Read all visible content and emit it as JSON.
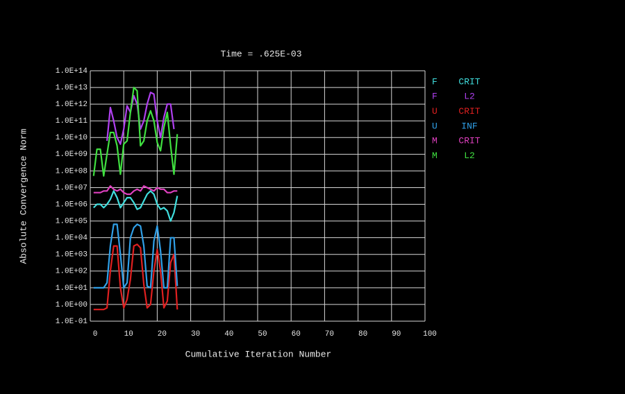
{
  "chart_data": {
    "type": "line",
    "title": "Time = .625E-03",
    "x_label": "Cumulative Iteration Number",
    "y_label": "Absolute Convergence Norm",
    "log_y": true,
    "grid": true,
    "xlim": [
      0,
      100
    ],
    "xticks": [
      0,
      10,
      20,
      30,
      40,
      50,
      60,
      70,
      80,
      90,
      100
    ],
    "ylim": [
      0.1,
      100000000000000.0
    ],
    "yticks": [
      {
        "value": 0.1,
        "label": "1.0E-01"
      },
      {
        "value": 1,
        "label": "1.0E+00"
      },
      {
        "value": 10,
        "label": "1.0E+01"
      },
      {
        "value": 100,
        "label": "1.0E+02"
      },
      {
        "value": 1000,
        "label": "1.0E+03"
      },
      {
        "value": 10000,
        "label": "1.0E+04"
      },
      {
        "value": 100000,
        "label": "1.0E+05"
      },
      {
        "value": 1000000,
        "label": "1.0E+06"
      },
      {
        "value": 10000000,
        "label": "1.0E+07"
      },
      {
        "value": 100000000,
        "label": "1.0E+08"
      },
      {
        "value": 1000000000,
        "label": "1.0E+09"
      },
      {
        "value": 10000000000,
        "label": "1.0E+10"
      },
      {
        "value": 100000000000,
        "label": "1.0E+11"
      },
      {
        "value": 1000000000000,
        "label": "1.0E+12"
      },
      {
        "value": 10000000000000,
        "label": "1.0E+13"
      },
      {
        "value": 100000000000000,
        "label": "1.0E+14"
      }
    ],
    "x": [
      1,
      2,
      3,
      4,
      5,
      6,
      7,
      8,
      9,
      10,
      11,
      12,
      13,
      14,
      15,
      16,
      17,
      18,
      19,
      20,
      21,
      22,
      23,
      24,
      25,
      26
    ],
    "series": [
      {
        "name": "F",
        "criterion": "CRIT",
        "color": "#40dede",
        "values": [
          630000.0,
          1000000.0,
          1000000.0,
          630000.0,
          1000000.0,
          2000000.0,
          6300000.0,
          2500000.0,
          630000.0,
          1260000.0,
          2500000.0,
          2500000.0,
          1260000.0,
          500000.0,
          630000.0,
          1600000.0,
          4000000.0,
          6300000.0,
          4000000.0,
          1000000.0,
          500000.0,
          630000.0,
          400000.0,
          100000.0,
          320000.0,
          3200000.0
        ]
      },
      {
        "name": "F",
        "criterion": "L2",
        "color": "#b040f0",
        "values": [
          null,
          null,
          null,
          null,
          6300000000.0,
          630000000000.0,
          100000000000.0,
          10000000000.0,
          4000000000.0,
          32000000000.0,
          800000000000.0,
          320000000000.0,
          3200000000000.0,
          1000000000000.0,
          32000000000.0,
          100000000000.0,
          1000000000000.0,
          5000000000000.0,
          4000000000000.0,
          100000000000.0,
          10000000000.0,
          160000000000.0,
          1000000000000.0,
          1000000000000.0,
          32000000000.0,
          null
        ]
      },
      {
        "name": "U",
        "criterion": "CRIT",
        "color": "#e02020",
        "values": [
          0.5,
          0.5,
          0.5,
          0.5,
          0.63,
          100,
          3200,
          3200,
          10,
          0.63,
          2,
          32,
          3200,
          4000,
          2500,
          16,
          0.63,
          1,
          100,
          2000,
          100,
          0.63,
          1.6,
          320,
          1000,
          0.5
        ]
      },
      {
        "name": "U",
        "criterion": "INF",
        "color": "#30a0e8",
        "values": [
          10,
          10,
          10,
          10,
          20,
          3200,
          63000,
          63000,
          1000,
          10,
          20,
          10000,
          40000,
          63000,
          50000,
          3200,
          12.6,
          10,
          6300,
          50000,
          1600,
          10,
          10,
          10000,
          10000,
          12.6
        ]
      },
      {
        "name": "M",
        "criterion": "CRIT",
        "color": "#e040c0",
        "values": [
          5000000.0,
          5000000.0,
          5000000.0,
          6300000.0,
          6300000.0,
          12600000.0,
          8000000.0,
          6300000.0,
          8000000.0,
          5000000.0,
          4000000.0,
          4000000.0,
          6300000.0,
          8000000.0,
          6300000.0,
          12600000.0,
          10000000.0,
          8000000.0,
          6300000.0,
          10000000.0,
          8000000.0,
          8000000.0,
          5000000.0,
          5000000.0,
          6300000.0,
          6300000.0
        ]
      },
      {
        "name": "M",
        "criterion": "L2",
        "color": "#40e040",
        "values": [
          50000000.0,
          2000000000.0,
          2000000000.0,
          50000000.0,
          1000000000.0,
          20000000000.0,
          20000000000.0,
          3200000000.0,
          63000000.0,
          4000000000.0,
          6300000000.0,
          320000000000.0,
          10000000000000.0,
          6300000000000.0,
          3200000000.0,
          6300000000.0,
          100000000000.0,
          400000000000.0,
          100000000000.0,
          5000000000.0,
          1600000000.0,
          40000000000.0,
          320000000000.0,
          3200000000.0,
          63000000.0,
          16000000000.0
        ]
      }
    ]
  }
}
